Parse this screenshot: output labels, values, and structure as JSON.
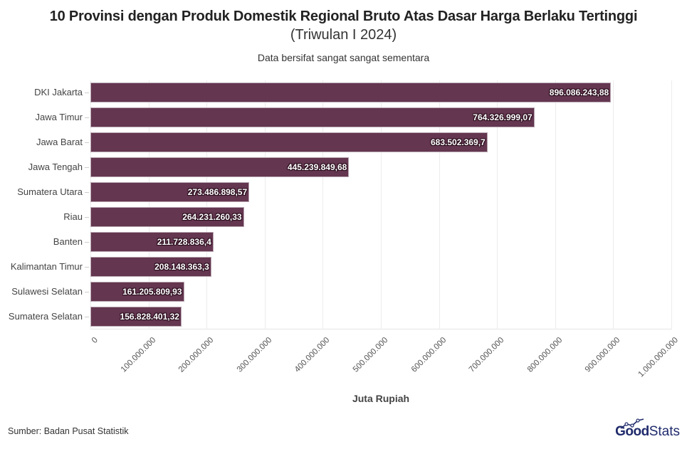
{
  "header": {
    "title": "10 Provinsi dengan Produk Domestik Regional Bruto Atas Dasar Harga Berlaku Tertinggi",
    "subtitle": "(Triwulan I 2024)",
    "note": "Data bersifat sangat sangat sementara"
  },
  "footer": {
    "source": "Sumber: Badan Pusat Statistik",
    "logo_bold": "Good",
    "logo_light": "Stats"
  },
  "colors": {
    "bar": "#643650",
    "logo": "#1f2a6b"
  },
  "axis": {
    "xlabel": "Juta Rupiah",
    "ticks": [
      "0",
      "100.000.000",
      "200.000.000",
      "300.000.000",
      "400.000.000",
      "500.000.000",
      "600.000.000",
      "700.000.000",
      "800.000.000",
      "900.000.000",
      "1.000.000.000"
    ]
  },
  "bars": [
    {
      "label": "DKI Jakarta",
      "value_text": "896.086.243,88"
    },
    {
      "label": "Jawa Timur",
      "value_text": "764.326.999,07"
    },
    {
      "label": "Jawa Barat",
      "value_text": "683.502.369,7"
    },
    {
      "label": "Jawa Tengah",
      "value_text": "445.239.849,68"
    },
    {
      "label": "Sumatera Utara",
      "value_text": "273.486.898,57"
    },
    {
      "label": "Riau",
      "value_text": "264.231.260,33"
    },
    {
      "label": "Banten",
      "value_text": "211.728.836,4"
    },
    {
      "label": "Kalimantan Timur",
      "value_text": "208.148.363,3"
    },
    {
      "label": "Sulawesi Selatan",
      "value_text": "161.205.809,93"
    },
    {
      "label": "Sumatera Selatan",
      "value_text": "156.828.401,32"
    }
  ],
  "chart_data": {
    "type": "bar",
    "orientation": "horizontal",
    "title": "10 Provinsi dengan Produk Domestik Regional Bruto Atas Dasar Harga Berlaku Tertinggi",
    "subtitle": "(Triwulan I 2024)",
    "annotation": "Data bersifat sangat sangat sementara",
    "categories": [
      "DKI Jakarta",
      "Jawa Timur",
      "Jawa Barat",
      "Jawa Tengah",
      "Sumatera Utara",
      "Riau",
      "Banten",
      "Kalimantan Timur",
      "Sulawesi Selatan",
      "Sumatera Selatan"
    ],
    "values": [
      896086243.88,
      764326999.07,
      683502369.7,
      445239849.68,
      273486898.57,
      264231260.33,
      211728836.4,
      208148363.3,
      161205809.93,
      156828401.32
    ],
    "xlabel": "Juta Rupiah",
    "ylabel": "",
    "xlim": [
      0,
      1000000000
    ],
    "xticks": [
      0,
      100000000,
      200000000,
      300000000,
      400000000,
      500000000,
      600000000,
      700000000,
      800000000,
      900000000,
      1000000000
    ],
    "grid": "vertical",
    "legend": "none",
    "source": "Sumber: Badan Pusat Statistik"
  }
}
